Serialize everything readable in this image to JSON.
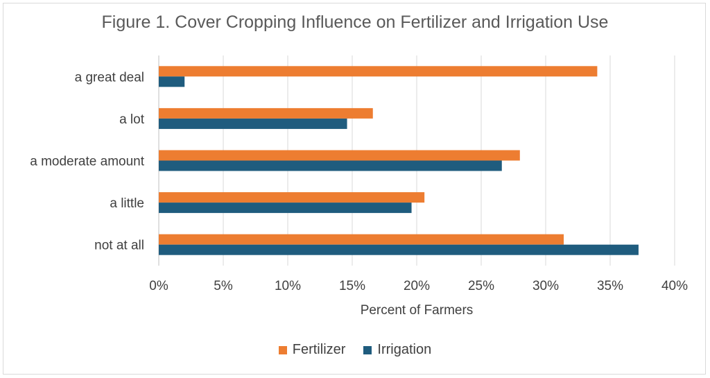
{
  "chart_data": {
    "type": "bar",
    "orientation": "horizontal",
    "title": "Figure 1. Cover Cropping Influence on Fertilizer and Irrigation Use",
    "categories": [
      "a great deal",
      "a lot",
      "a moderate amount",
      "a little",
      "not at all"
    ],
    "series": [
      {
        "name": "Fertilizer",
        "color": "#ED7D31",
        "values": [
          34.0,
          16.6,
          28.0,
          20.6,
          31.4
        ]
      },
      {
        "name": "Irrigation",
        "color": "#1F5C7E",
        "values": [
          2.0,
          14.6,
          26.6,
          19.6,
          37.2
        ]
      }
    ],
    "xlabel": "Percent of Farmers",
    "ylabel": "",
    "xlim": [
      0,
      40
    ],
    "xticks": [
      "0%",
      "5%",
      "10%",
      "15%",
      "20%",
      "25%",
      "30%",
      "35%",
      "40%"
    ],
    "grid": true,
    "legend_position": "bottom"
  }
}
